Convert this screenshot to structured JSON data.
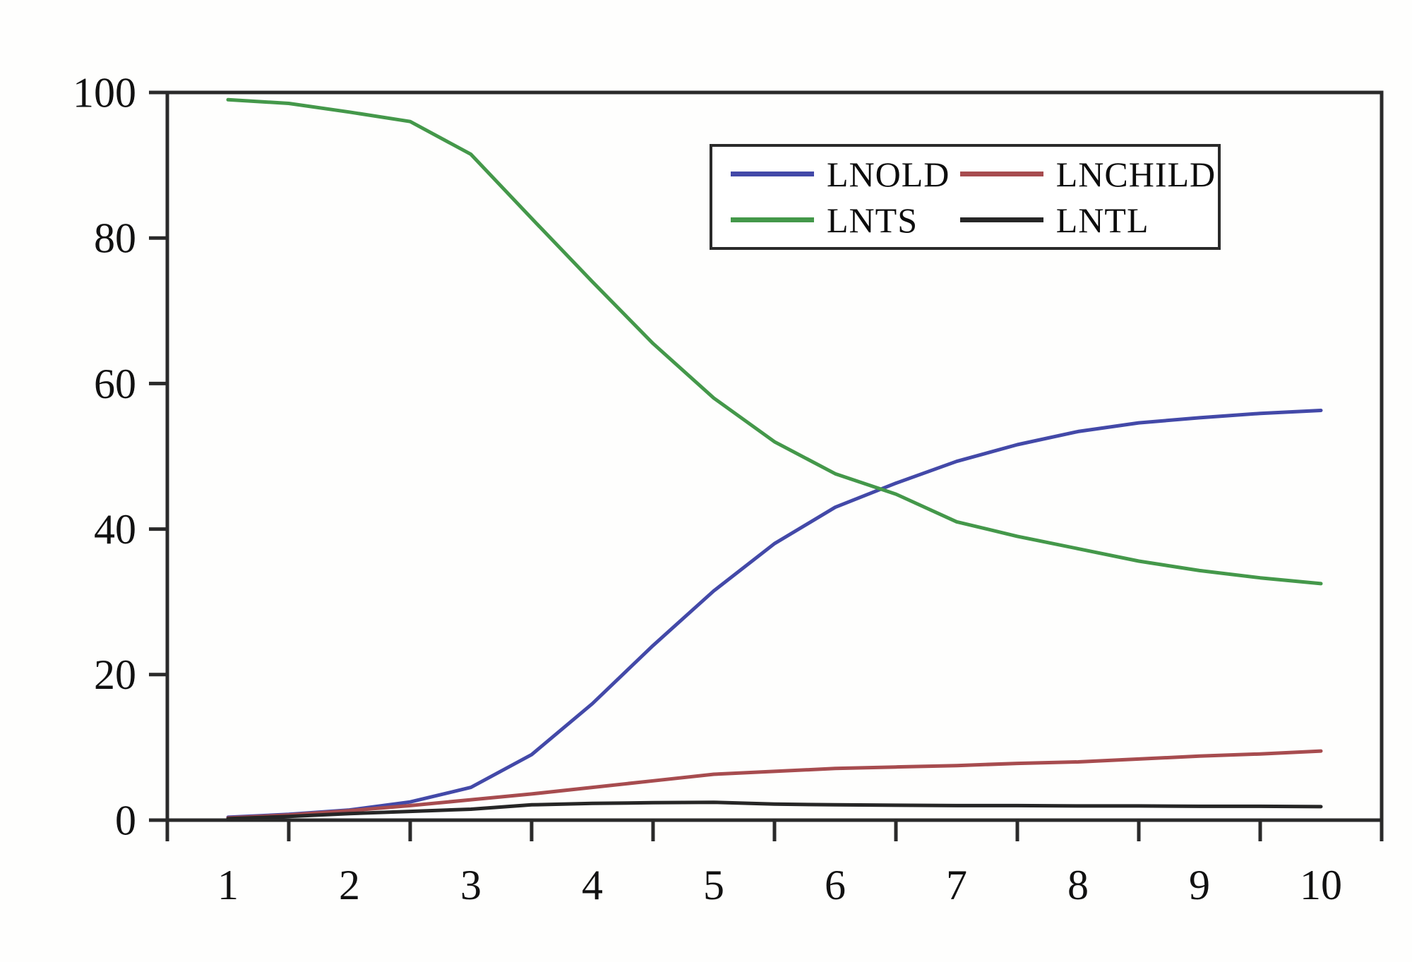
{
  "chart_data": {
    "type": "line",
    "title": "",
    "xlabel": "",
    "ylabel": "",
    "x_tick_labels": [
      "1",
      "2",
      "3",
      "4",
      "5",
      "6",
      "7",
      "8",
      "9",
      "10"
    ],
    "y_ticks": [
      0,
      20,
      40,
      60,
      80,
      100
    ],
    "ylim": [
      0,
      100
    ],
    "xlim": [
      0.5,
      10.5
    ],
    "grid": false,
    "legend_position": "upper right inside",
    "axis_color": "#2a2a2a",
    "text_color": "#111111",
    "background_color": "#fefefd",
    "x": [
      1,
      1.5,
      2,
      2.5,
      3,
      3.5,
      4,
      4.5,
      5,
      5.5,
      6,
      6.5,
      7,
      7.5,
      8,
      8.5,
      9,
      9.5,
      10
    ],
    "series": [
      {
        "name": "LNOLD",
        "color": "#4349a8",
        "values": [
          0.4,
          0.8,
          1.4,
          2.5,
          4.5,
          9,
          16,
          24,
          31.5,
          38,
          43,
          46.3,
          49.3,
          51.6,
          53.4,
          54.6,
          55.3,
          55.9,
          56.3
        ]
      },
      {
        "name": "LNTS",
        "color": "#44984a",
        "values": [
          99,
          98.5,
          97.3,
          96,
          91.5,
          82.7,
          74,
          65.5,
          58,
          52,
          47.6,
          44.8,
          41,
          39,
          37.3,
          35.6,
          34.3,
          33.3,
          32.5
        ]
      },
      {
        "name": "LNCHILD",
        "color": "#a74c4f",
        "values": [
          0.3,
          0.7,
          1.3,
          2.0,
          2.8,
          3.6,
          4.5,
          5.4,
          6.3,
          6.7,
          7.1,
          7.3,
          7.5,
          7.8,
          8.0,
          8.4,
          8.8,
          9.1,
          9.5
        ]
      },
      {
        "name": "LNTL",
        "color": "#262626",
        "values": [
          0.2,
          0.5,
          0.9,
          1.2,
          1.5,
          2.1,
          2.3,
          2.4,
          2.45,
          2.2,
          2.1,
          2.05,
          2.0,
          2.0,
          1.95,
          1.95,
          1.9,
          1.9,
          1.85
        ]
      }
    ]
  },
  "legend": {
    "items": [
      {
        "label": "LNOLD",
        "color": "#4349a8"
      },
      {
        "label": "LNCHILD",
        "color": "#a74c4f"
      },
      {
        "label": "LNTS",
        "color": "#44984a"
      },
      {
        "label": "LNTL",
        "color": "#262626"
      }
    ]
  }
}
